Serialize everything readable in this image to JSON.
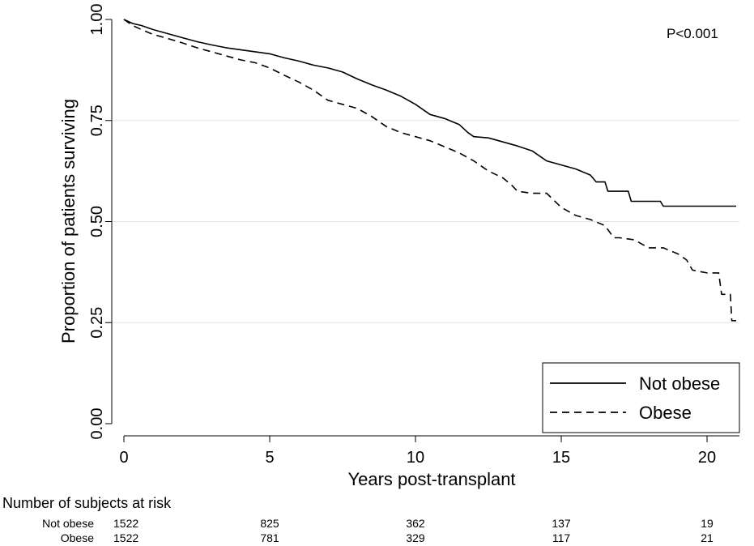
{
  "chart_data": {
    "type": "line",
    "xlabel": "Years post-transplant",
    "ylabel": "Proportion of patients surviving",
    "xlim": [
      0,
      21
    ],
    "ylim": [
      0,
      1
    ],
    "x_ticks": [
      0,
      5,
      10,
      15,
      20
    ],
    "y_ticks": [
      0.0,
      0.25,
      0.5,
      0.75,
      1.0
    ],
    "y_tick_labels": [
      "0.00",
      "0.25",
      "0.50",
      "0.75",
      "1.00"
    ],
    "grid": "horizontal",
    "legend_position": "bottom-right",
    "annotation": "P<0.001",
    "series": [
      {
        "name": "Not obese",
        "style": "solid",
        "color": "#000000",
        "points": [
          [
            0,
            1.0
          ],
          [
            0.3,
            0.99
          ],
          [
            0.6,
            0.985
          ],
          [
            1,
            0.975
          ],
          [
            1.5,
            0.965
          ],
          [
            2,
            0.955
          ],
          [
            2.5,
            0.945
          ],
          [
            3,
            0.937
          ],
          [
            3.5,
            0.93
          ],
          [
            4,
            0.925
          ],
          [
            4.5,
            0.92
          ],
          [
            5,
            0.915
          ],
          [
            5.5,
            0.905
          ],
          [
            6,
            0.897
          ],
          [
            6.5,
            0.887
          ],
          [
            7,
            0.88
          ],
          [
            7.5,
            0.87
          ],
          [
            8,
            0.853
          ],
          [
            8.5,
            0.838
          ],
          [
            9,
            0.825
          ],
          [
            9.5,
            0.81
          ],
          [
            10,
            0.79
          ],
          [
            10.5,
            0.765
          ],
          [
            11,
            0.755
          ],
          [
            11.5,
            0.74
          ],
          [
            11.8,
            0.72
          ],
          [
            12,
            0.71
          ],
          [
            12.5,
            0.707
          ],
          [
            13,
            0.697
          ],
          [
            13.5,
            0.687
          ],
          [
            14,
            0.675
          ],
          [
            14.3,
            0.66
          ],
          [
            14.5,
            0.65
          ],
          [
            15,
            0.64
          ],
          [
            15.5,
            0.63
          ],
          [
            16,
            0.615
          ],
          [
            16.2,
            0.598
          ],
          [
            16.5,
            0.598
          ],
          [
            16.6,
            0.575
          ],
          [
            17,
            0.575
          ],
          [
            17.3,
            0.575
          ],
          [
            17.4,
            0.55
          ],
          [
            18,
            0.55
          ],
          [
            18.4,
            0.55
          ],
          [
            18.5,
            0.538
          ],
          [
            20,
            0.538
          ],
          [
            21,
            0.538
          ]
        ]
      },
      {
        "name": "Obese",
        "style": "dashed",
        "color": "#000000",
        "points": [
          [
            0,
            1.0
          ],
          [
            0.3,
            0.985
          ],
          [
            0.6,
            0.975
          ],
          [
            1,
            0.963
          ],
          [
            1.5,
            0.953
          ],
          [
            2,
            0.942
          ],
          [
            2.5,
            0.93
          ],
          [
            3,
            0.92
          ],
          [
            3.5,
            0.91
          ],
          [
            4,
            0.9
          ],
          [
            4.5,
            0.893
          ],
          [
            5,
            0.88
          ],
          [
            5.5,
            0.862
          ],
          [
            6,
            0.845
          ],
          [
            6.5,
            0.825
          ],
          [
            7,
            0.8
          ],
          [
            7.5,
            0.79
          ],
          [
            8,
            0.78
          ],
          [
            8.5,
            0.76
          ],
          [
            9,
            0.735
          ],
          [
            9.5,
            0.72
          ],
          [
            10,
            0.71
          ],
          [
            10.5,
            0.7
          ],
          [
            11,
            0.685
          ],
          [
            11.5,
            0.67
          ],
          [
            12,
            0.65
          ],
          [
            12.5,
            0.625
          ],
          [
            13,
            0.608
          ],
          [
            13.3,
            0.59
          ],
          [
            13.5,
            0.575
          ],
          [
            14,
            0.57
          ],
          [
            14.5,
            0.57
          ],
          [
            15,
            0.535
          ],
          [
            15.5,
            0.515
          ],
          [
            16,
            0.505
          ],
          [
            16.5,
            0.49
          ],
          [
            16.8,
            0.46
          ],
          [
            17,
            0.46
          ],
          [
            17.5,
            0.455
          ],
          [
            18,
            0.435
          ],
          [
            18.5,
            0.435
          ],
          [
            19,
            0.42
          ],
          [
            19.3,
            0.405
          ],
          [
            19.5,
            0.38
          ],
          [
            20,
            0.373
          ],
          [
            20.4,
            0.373
          ],
          [
            20.5,
            0.32
          ],
          [
            20.8,
            0.32
          ],
          [
            20.85,
            0.255
          ],
          [
            21,
            0.255
          ]
        ]
      }
    ]
  },
  "risk_table": {
    "title": "Number of subjects at risk",
    "rows": [
      {
        "label": "Not obese",
        "values": [
          "1522",
          "825",
          "362",
          "137",
          "19"
        ]
      },
      {
        "label": "Obese",
        "values": [
          "1522",
          "781",
          "329",
          "117",
          "21"
        ]
      }
    ]
  }
}
